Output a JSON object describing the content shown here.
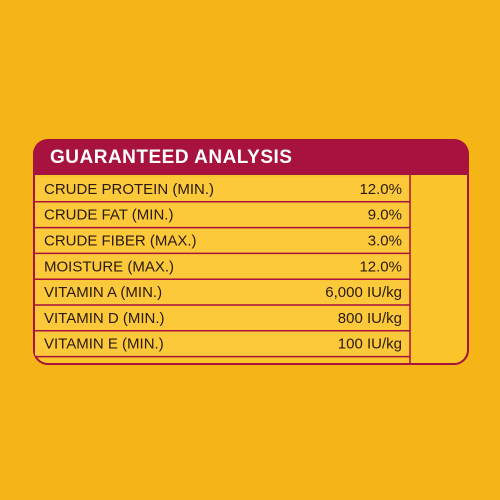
{
  "header": {
    "title": "GUARANTEED ANALYSIS"
  },
  "table": {
    "rows": [
      [
        "CRUDE PROTEIN (MIN.)",
        "12.0%"
      ],
      [
        "CRUDE FAT (MIN.)",
        "9.0%"
      ],
      [
        "CRUDE FIBER (MAX.)",
        "3.0%"
      ],
      [
        "MOISTURE (MAX.)",
        "12.0%"
      ],
      [
        "VITAMIN A (MIN.)",
        "6,000 IU/kg"
      ],
      [
        "VITAMIN D (MIN.)",
        "800 IU/kg"
      ],
      [
        "VITAMIN E (MIN.)",
        "100 IU/kg"
      ]
    ]
  }
}
